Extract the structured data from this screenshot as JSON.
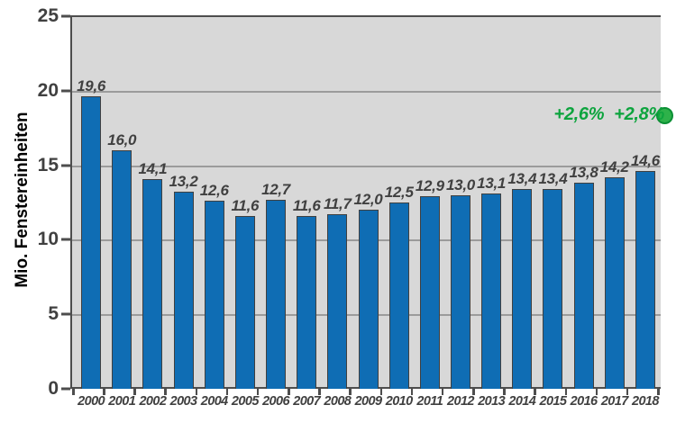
{
  "chart_data": {
    "type": "bar",
    "title": "",
    "ylabel": "Mio. Fenstereinheiten",
    "xlabel": "",
    "ylim": [
      0,
      25
    ],
    "yticks": [
      0,
      5,
      10,
      15,
      20,
      25
    ],
    "ytick_labels": [
      "0",
      "5",
      "10",
      "15",
      "20",
      "25"
    ],
    "grid": "horizontal",
    "legend": "none",
    "categories": [
      "2000",
      "2001",
      "2002",
      "2003",
      "2004",
      "2005",
      "2006",
      "2007",
      "2008",
      "2009",
      "2010",
      "2011",
      "2012",
      "2013",
      "2014",
      "2015",
      "2016",
      "2017",
      "2018"
    ],
    "values": [
      19.6,
      16.0,
      14.1,
      13.2,
      12.6,
      11.6,
      12.7,
      11.6,
      11.7,
      12.0,
      12.5,
      12.9,
      13.0,
      13.1,
      13.4,
      13.4,
      13.8,
      14.2,
      14.6
    ],
    "value_labels": [
      "19,6",
      "16,0",
      "14,1",
      "13,2",
      "12,6",
      "11,6",
      "12,7",
      "11,6",
      "11,7",
      "12,0",
      "12,5",
      "12,9",
      "13,0",
      "13,1",
      "13,4",
      "13,4",
      "13,8",
      "14,2",
      "14,6"
    ],
    "annotations": [
      {
        "label": "+2,6%"
      },
      {
        "label": "+2,8%"
      }
    ],
    "colors": {
      "bar_fill": "#0f6db4",
      "bar_stroke": "#404040",
      "plot_bg": "#d8d8d8",
      "gridline": "#9b9b9b",
      "axis": "#4d4d4d",
      "label_gray": "#404040",
      "accent_green": "#0da43e",
      "dot_fill": "#2eb24a",
      "dot_stroke": "#0c8f35"
    }
  }
}
